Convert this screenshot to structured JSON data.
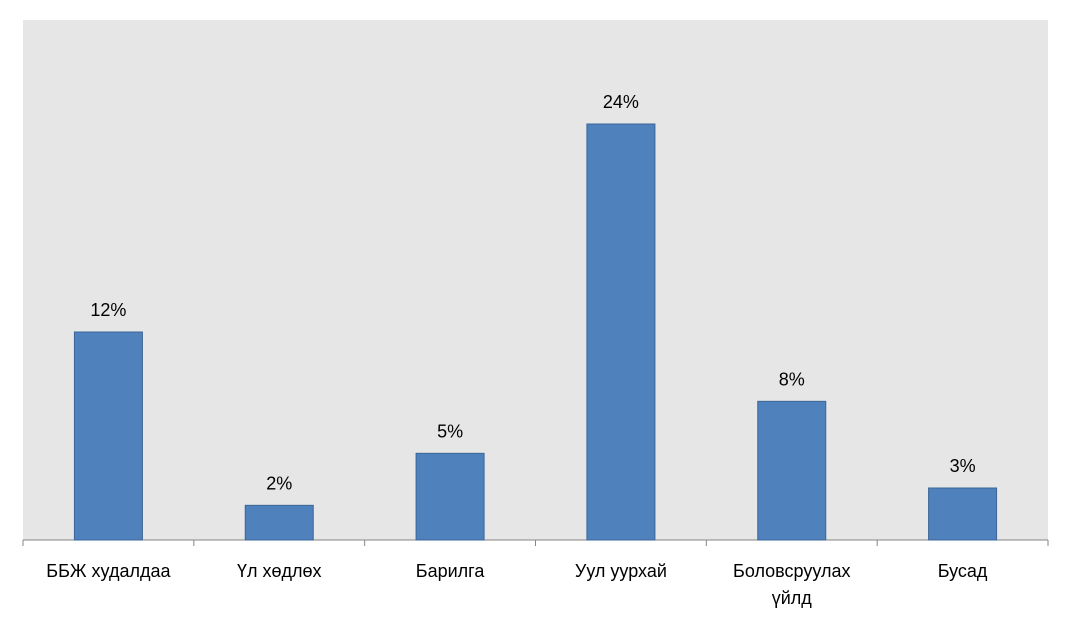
{
  "chart_data": {
    "type": "bar",
    "categories": [
      "ББЖ худалдаа",
      "Үл хөдлөх",
      "Барилга",
      "Уул уурхай",
      "Боловсруулах үйлд",
      "Бусад"
    ],
    "values": [
      12,
      2,
      5,
      24,
      8,
      3
    ],
    "value_labels": [
      "12%",
      "2%",
      "5%",
      "24%",
      "8%",
      "3%"
    ],
    "color": "#4f81bd",
    "ylim": [
      0,
      30
    ]
  }
}
